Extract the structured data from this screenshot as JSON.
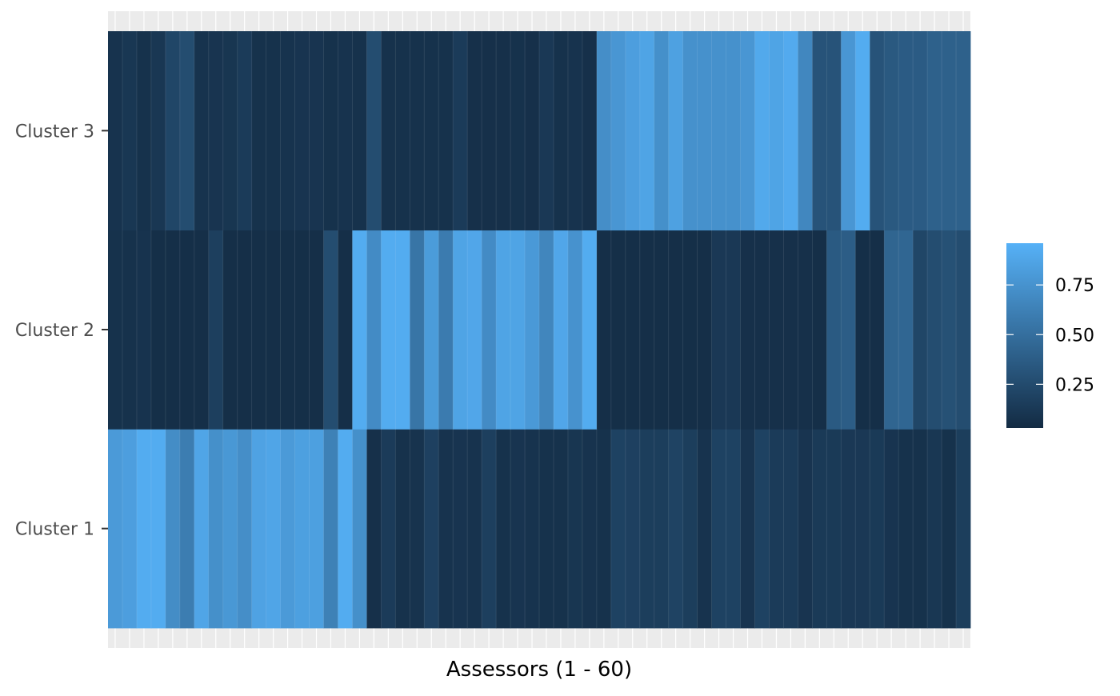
{
  "chart_data": {
    "type": "heatmap",
    "title": "",
    "xlabel": "Assessors (1 - 60)",
    "ylabel": "",
    "x": [
      "1",
      "2",
      "3",
      "4",
      "5",
      "6",
      "7",
      "8",
      "9",
      "10",
      "11",
      "12",
      "13",
      "14",
      "15",
      "16",
      "17",
      "18",
      "19",
      "20",
      "21",
      "22",
      "23",
      "24",
      "25",
      "26",
      "27",
      "28",
      "29",
      "30",
      "31",
      "32",
      "33",
      "34",
      "35",
      "36",
      "37",
      "38",
      "39",
      "40",
      "41",
      "42",
      "43",
      "44",
      "45",
      "46",
      "47",
      "48",
      "49",
      "50",
      "51",
      "52",
      "53",
      "54",
      "55",
      "56",
      "57",
      "58",
      "59",
      "60"
    ],
    "x_tick_labels_visible": false,
    "y": [
      "Cluster 1",
      "Cluster 2",
      "Cluster 3"
    ],
    "values": [
      [
        0.83,
        0.86,
        0.96,
        0.96,
        0.73,
        0.61,
        0.91,
        0.75,
        0.81,
        0.74,
        0.89,
        0.91,
        0.83,
        0.87,
        0.87,
        0.64,
        0.96,
        0.75,
        0.04,
        0.12,
        0.05,
        0.06,
        0.16,
        0.06,
        0.07,
        0.06,
        0.15,
        0.05,
        0.07,
        0.06,
        0.05,
        0.05,
        0.08,
        0.06,
        0.05,
        0.17,
        0.16,
        0.14,
        0.14,
        0.18,
        0.14,
        0.06,
        0.17,
        0.17,
        0.07,
        0.17,
        0.12,
        0.12,
        0.07,
        0.11,
        0.11,
        0.1,
        0.1,
        0.11,
        0.07,
        0.05,
        0.05,
        0.09,
        0.05,
        0.14
      ],
      [
        0.05,
        0.05,
        0.06,
        0.03,
        0.03,
        0.03,
        0.03,
        0.15,
        0.03,
        0.03,
        0.03,
        0.03,
        0.03,
        0.03,
        0.03,
        0.25,
        0.03,
        0.96,
        0.72,
        0.96,
        0.96,
        0.55,
        0.84,
        0.6,
        0.9,
        0.92,
        0.72,
        0.9,
        0.9,
        0.82,
        0.68,
        0.92,
        0.77,
        0.96,
        0.03,
        0.03,
        0.03,
        0.03,
        0.03,
        0.03,
        0.03,
        0.03,
        0.1,
        0.1,
        0.04,
        0.04,
        0.04,
        0.04,
        0.04,
        0.03,
        0.35,
        0.37,
        0.03,
        0.03,
        0.43,
        0.44,
        0.2,
        0.25,
        0.28,
        0.25
      ],
      [
        0.06,
        0.09,
        0.05,
        0.09,
        0.2,
        0.25,
        0.06,
        0.07,
        0.08,
        0.12,
        0.05,
        0.05,
        0.06,
        0.07,
        0.07,
        0.05,
        0.06,
        0.05,
        0.25,
        0.05,
        0.05,
        0.05,
        0.05,
        0.05,
        0.12,
        0.04,
        0.04,
        0.04,
        0.05,
        0.04,
        0.1,
        0.05,
        0.06,
        0.04,
        0.74,
        0.8,
        0.86,
        0.9,
        0.75,
        0.88,
        0.76,
        0.76,
        0.76,
        0.76,
        0.8,
        0.94,
        0.9,
        0.95,
        0.69,
        0.3,
        0.3,
        0.8,
        0.96,
        0.3,
        0.34,
        0.36,
        0.36,
        0.4,
        0.4,
        0.4
      ]
    ],
    "color_scale": {
      "low": "#132B43",
      "high": "#56B1F7",
      "min": 0.0,
      "max": 1.0
    },
    "colorbar": {
      "ticks": [
        0.25,
        0.5,
        0.75
      ],
      "tick_labels": [
        "0.25",
        "0.50",
        "0.75"
      ],
      "range": [
        0.03,
        0.96
      ],
      "title": ""
    },
    "legend_position": "right",
    "panel_background": "#EBEBEB",
    "grid": true
  }
}
